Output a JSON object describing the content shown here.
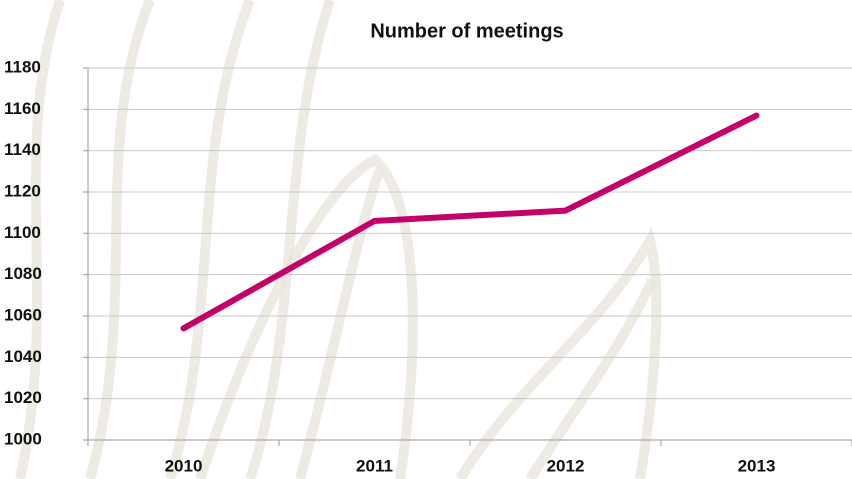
{
  "chart_data": {
    "type": "line",
    "title": "Number of meetings",
    "categories": [
      "2010",
      "2011",
      "2012",
      "2013"
    ],
    "series": [
      {
        "name": "Number of meetings",
        "color": "#c4006b",
        "values": [
          1054,
          1106,
          1111,
          1157
        ]
      }
    ],
    "ylim": [
      1000,
      1180
    ],
    "yticks": [
      1000,
      1020,
      1040,
      1060,
      1080,
      1100,
      1120,
      1140,
      1160,
      1180
    ],
    "grid": true
  }
}
